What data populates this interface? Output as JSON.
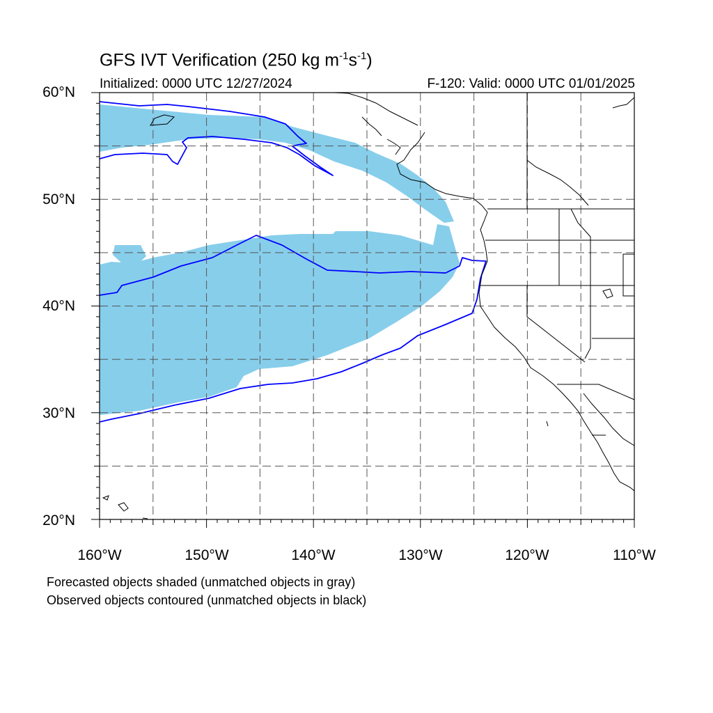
{
  "title": {
    "main": "GFS IVT Verification (250 kg m",
    "exp1": "-1",
    "mid": "s",
    "exp2": "-1",
    "end": ")"
  },
  "initialized": "Initialized: 0000 UTC 12/27/2024",
  "valid": "F-120: Valid: 0000 UTC 01/01/2025",
  "map": {
    "lat_range": [
      20,
      60
    ],
    "lon_range": [
      -160,
      -110
    ],
    "gridlines": "dashed every 5 degrees",
    "lat_labels": [
      "60°N",
      "50°N",
      "40°N",
      "30°N",
      "20°N"
    ],
    "lon_labels": [
      "160°W",
      "150°W",
      "140°W",
      "130°W",
      "120°W",
      "110°W"
    ],
    "colors": {
      "forecast_fill": "#87ceeb",
      "observed_contour": "#0000ff",
      "coastline": "#000000",
      "grid": "#555555"
    }
  },
  "notes": {
    "forecast": "Forecasted objects shaded (unmatched objects in gray)",
    "observed": "Observed objects contoured (unmatched objects in black)"
  }
}
